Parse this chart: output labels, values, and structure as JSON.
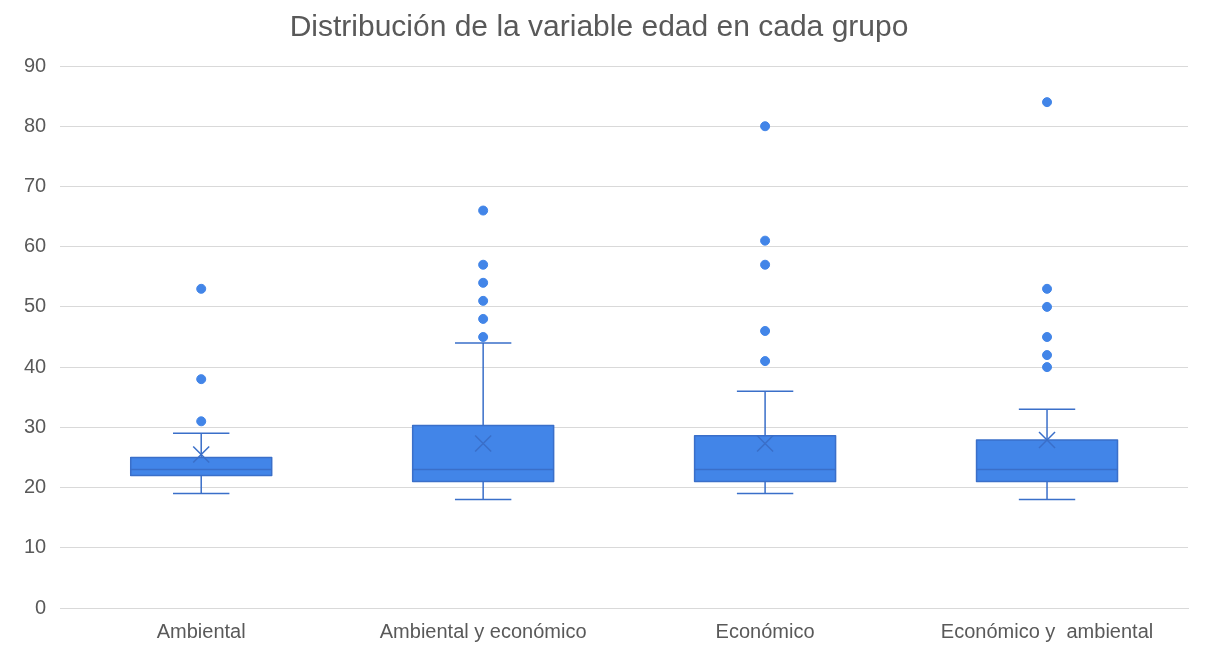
{
  "chart_data": {
    "type": "box",
    "title": "Distribución de la variable edad en cada grupo",
    "categories": [
      "Ambiental",
      "Ambiental y económico",
      "Económico",
      "Económico y  ambiental"
    ],
    "color": "#4285e8",
    "boxes": [
      {
        "low": 19,
        "q1": 22,
        "median": 23,
        "q3": 25,
        "high": 29,
        "mean": 25.5,
        "outliers": [
          31,
          38,
          53
        ]
      },
      {
        "low": 18,
        "q1": 21,
        "median": 23,
        "q3": 30.3,
        "high": 44,
        "mean": 27.3,
        "outliers": [
          45,
          48,
          51,
          54,
          57,
          66
        ]
      },
      {
        "low": 19,
        "q1": 21,
        "median": 23,
        "q3": 28.6,
        "high": 36,
        "mean": 27.3,
        "outliers": [
          41,
          46,
          57,
          61,
          80
        ]
      },
      {
        "low": 18,
        "q1": 21,
        "median": 23,
        "q3": 27.9,
        "high": 33,
        "mean": 27.9,
        "outliers": [
          40,
          42,
          45,
          50,
          53,
          84
        ]
      }
    ],
    "ylim": [
      0,
      90
    ],
    "yticks": [
      0,
      10,
      20,
      30,
      40,
      50,
      60,
      70,
      80,
      90
    ],
    "grid": "y",
    "legend": false,
    "marker": "cross"
  }
}
